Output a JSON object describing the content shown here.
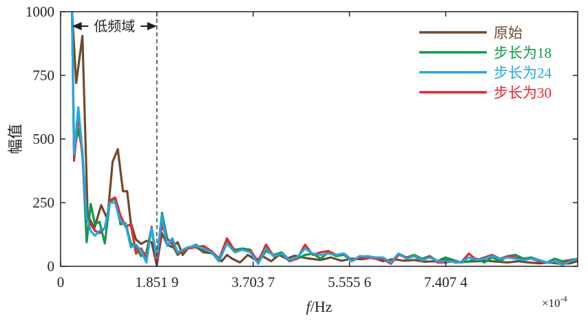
{
  "chart_data": {
    "type": "line",
    "xlabel_italic": "f",
    "xlabel_rest": "/Hz",
    "ylabel": "幅值",
    "x_multiplier": "×10",
    "x_multiplier_exp": "-4",
    "xlim": [
      0,
      9.944
    ],
    "ylim": [
      0,
      1000
    ],
    "xticks": [
      {
        "value": 0,
        "label": "0"
      },
      {
        "value": 1.8519,
        "label": "1.851 9"
      },
      {
        "value": 3.7037,
        "label": "3.703 7"
      },
      {
        "value": 5.5556,
        "label": "5.555 6"
      },
      {
        "value": 7.4074,
        "label": "7.407 4"
      }
    ],
    "yticks": [
      {
        "value": 0,
        "label": "0"
      },
      {
        "value": 250,
        "label": "250"
      },
      {
        "value": 500,
        "label": "500"
      },
      {
        "value": 750,
        "label": "750"
      },
      {
        "value": 1000,
        "label": "1000"
      }
    ],
    "annotation": {
      "text": "低频域",
      "x_start": 0.22,
      "x_end": 1.8519
    },
    "divider_x": 1.8519,
    "grid": false,
    "legend_position": "top-right",
    "series": [
      {
        "name": "原始",
        "color": "#704a2b",
        "x": [
          0.22,
          0.3,
          0.42,
          0.52,
          0.65,
          0.78,
          0.9,
          1.0,
          1.1,
          1.2,
          1.28,
          1.35,
          1.45,
          1.55,
          1.65,
          1.75,
          1.85,
          1.95,
          2.05,
          2.15,
          2.25,
          2.35,
          2.45,
          2.55,
          2.65,
          2.75,
          2.9,
          3.0,
          3.1,
          3.2,
          3.3,
          3.45,
          3.6,
          3.75,
          3.9,
          4.05,
          4.2,
          4.35,
          4.5,
          4.65,
          4.8,
          5.0,
          5.2,
          5.4,
          5.6,
          5.8,
          6.0,
          6.2,
          6.4,
          6.6,
          6.8,
          7.0,
          7.2,
          7.4,
          7.6,
          7.8,
          8.0,
          8.2,
          8.4,
          8.6,
          8.8,
          9.0,
          9.2,
          9.4,
          9.6,
          9.8,
          9.94
        ],
        "y": [
          1000,
          720,
          905,
          200,
          150,
          240,
          185,
          410,
          460,
          295,
          295,
          170,
          105,
          88,
          100,
          95,
          5,
          130,
          85,
          75,
          95,
          45,
          72,
          80,
          70,
          55,
          52,
          40,
          20,
          45,
          30,
          15,
          45,
          25,
          38,
          20,
          45,
          30,
          42,
          35,
          30,
          25,
          35,
          22,
          30,
          28,
          35,
          20,
          28,
          22,
          25,
          18,
          20,
          25,
          15,
          18,
          20,
          22,
          18,
          15,
          20,
          15,
          12,
          15,
          10,
          12,
          20
        ]
      },
      {
        "name": "步长为18",
        "color": "#0d9a48",
        "x": [
          0.22,
          0.26,
          0.34,
          0.42,
          0.5,
          0.58,
          0.66,
          0.75,
          0.85,
          0.95,
          1.05,
          1.15,
          1.25,
          1.35,
          1.45,
          1.55,
          1.65,
          1.75,
          1.85,
          1.95,
          2.05,
          2.15,
          2.25,
          2.35,
          2.45,
          2.6,
          2.75,
          2.9,
          3.05,
          3.2,
          3.35,
          3.5,
          3.65,
          3.8,
          3.95,
          4.1,
          4.25,
          4.4,
          4.55,
          4.7,
          4.85,
          5.0,
          5.15,
          5.3,
          5.45,
          5.6,
          5.75,
          5.9,
          6.05,
          6.2,
          6.35,
          6.5,
          6.65,
          6.8,
          6.95,
          7.1,
          7.25,
          7.4,
          7.55,
          7.7,
          7.85,
          8.0,
          8.15,
          8.3,
          8.45,
          8.6,
          8.75,
          8.9,
          9.05,
          9.2,
          9.35,
          9.5,
          9.65,
          9.8,
          9.94
        ],
        "y": [
          1000,
          450,
          540,
          450,
          95,
          245,
          165,
          175,
          90,
          255,
          265,
          165,
          170,
          90,
          75,
          40,
          55,
          150,
          20,
          210,
          110,
          85,
          45,
          60,
          70,
          85,
          65,
          55,
          20,
          95,
          65,
          70,
          65,
          15,
          60,
          45,
          55,
          25,
          30,
          45,
          50,
          30,
          55,
          40,
          45,
          20,
          35,
          40,
          35,
          30,
          15,
          50,
          35,
          45,
          30,
          40,
          20,
          35,
          25,
          15,
          20,
          30,
          15,
          35,
          20,
          40,
          45,
          30,
          35,
          25,
          15,
          30,
          20,
          25,
          30
        ]
      },
      {
        "name": "步长为30",
        "color": "#e8252a",
        "x": [
          0.22,
          0.26,
          0.34,
          0.42,
          0.5,
          0.58,
          0.66,
          0.75,
          0.85,
          0.95,
          1.05,
          1.15,
          1.25,
          1.35,
          1.45,
          1.55,
          1.65,
          1.75,
          1.85,
          1.95,
          2.05,
          2.15,
          2.25,
          2.35,
          2.45,
          2.6,
          2.75,
          2.9,
          3.05,
          3.2,
          3.35,
          3.5,
          3.65,
          3.8,
          3.95,
          4.1,
          4.25,
          4.4,
          4.55,
          4.7,
          4.85,
          5.0,
          5.15,
          5.3,
          5.45,
          5.6,
          5.75,
          5.9,
          6.05,
          6.2,
          6.35,
          6.5,
          6.65,
          6.8,
          6.95,
          7.1,
          7.25,
          7.4,
          7.55,
          7.7,
          7.85,
          8.0,
          8.15,
          8.3,
          8.45,
          8.6,
          8.75,
          8.9,
          9.05,
          9.2,
          9.35,
          9.5,
          9.65,
          9.8,
          9.94
        ],
        "y": [
          1000,
          415,
          600,
          430,
          180,
          165,
          140,
          130,
          150,
          260,
          270,
          200,
          155,
          165,
          50,
          70,
          30,
          155,
          15,
          165,
          105,
          95,
          50,
          60,
          70,
          75,
          80,
          60,
          30,
          110,
          60,
          65,
          60,
          20,
          85,
          40,
          50,
          20,
          30,
          85,
          45,
          55,
          60,
          45,
          50,
          25,
          35,
          35,
          30,
          30,
          10,
          45,
          35,
          40,
          20,
          40,
          15,
          15,
          20,
          15,
          50,
          25,
          35,
          45,
          30,
          40,
          35,
          25,
          30,
          20,
          15,
          20,
          10,
          25,
          20
        ]
      },
      {
        "name": "步长为24",
        "color": "#20a9e1",
        "x": [
          0.22,
          0.26,
          0.34,
          0.42,
          0.5,
          0.58,
          0.66,
          0.75,
          0.85,
          0.95,
          1.05,
          1.15,
          1.25,
          1.35,
          1.45,
          1.55,
          1.65,
          1.75,
          1.85,
          1.95,
          2.05,
          2.15,
          2.25,
          2.35,
          2.45,
          2.6,
          2.75,
          2.9,
          3.05,
          3.2,
          3.35,
          3.5,
          3.65,
          3.8,
          3.95,
          4.1,
          4.25,
          4.4,
          4.55,
          4.7,
          4.85,
          5.0,
          5.15,
          5.3,
          5.45,
          5.6,
          5.75,
          5.9,
          6.05,
          6.2,
          6.35,
          6.5,
          6.65,
          6.8,
          6.95,
          7.1,
          7.25,
          7.4,
          7.55,
          7.7,
          7.85,
          8.0,
          8.15,
          8.3,
          8.45,
          8.6,
          8.75,
          8.9,
          9.05,
          9.2,
          9.35,
          9.5,
          9.65,
          9.8,
          9.94
        ],
        "y": [
          1000,
          440,
          625,
          450,
          190,
          140,
          120,
          140,
          150,
          250,
          250,
          175,
          165,
          75,
          85,
          60,
          15,
          150,
          35,
          200,
          80,
          110,
          55,
          65,
          75,
          80,
          70,
          55,
          25,
          90,
          55,
          65,
          55,
          10,
          70,
          40,
          50,
          25,
          35,
          70,
          50,
          45,
          50,
          45,
          50,
          20,
          40,
          38,
          35,
          35,
          15,
          50,
          30,
          40,
          25,
          35,
          20,
          20,
          18,
          15,
          35,
          25,
          30,
          40,
          30,
          35,
          30,
          25,
          30,
          25,
          15,
          20,
          5,
          20,
          30
        ]
      }
    ]
  }
}
